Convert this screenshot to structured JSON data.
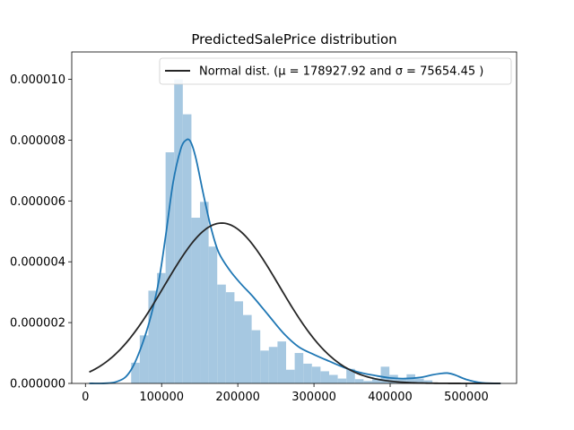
{
  "chart_data": {
    "type": "bar",
    "title": "PredictedSalePrice distribution",
    "xlabel": "",
    "ylabel": "",
    "xlim": [
      -18000,
      566000
    ],
    "ylim": [
      0,
      1.09e-05
    ],
    "x_ticks": [
      0,
      100000,
      200000,
      300000,
      400000,
      500000
    ],
    "y_ticks": [
      0,
      2e-06,
      4e-06,
      6e-06,
      8e-06,
      1e-05
    ],
    "y_tick_labels": [
      "0.000000",
      "0.000002",
      "0.000004",
      "0.000006",
      "0.000008",
      "0.000010"
    ],
    "grid": false,
    "legend_position": "top-right",
    "histogram": {
      "bin_width": 11300,
      "bins_left": [
        60000,
        71300,
        82600,
        93900,
        105200,
        116500,
        127800,
        139100,
        150400,
        161700,
        173000,
        184300,
        195600,
        206900,
        218200,
        229500,
        240800,
        252100,
        263400,
        274700,
        286000,
        297300,
        308600,
        319900,
        331200,
        342500,
        353800,
        365100,
        376400,
        387700,
        399000,
        410300,
        421600,
        432900,
        444200,
        455500,
        466800,
        478100,
        489400
      ],
      "density": [
        6.8e-07,
        1.58e-06,
        3.05e-06,
        3.63e-06,
        7.6e-06,
        1e-05,
        8.85e-06,
        5.45e-06,
        5.97e-06,
        4.5e-06,
        3.25e-06,
        3e-06,
        2.7e-06,
        2.25e-06,
        1.75e-06,
        1.08e-06,
        1.2e-06,
        1.38e-06,
        4.5e-07,
        1e-06,
        6.5e-07,
        5.5e-07,
        4e-07,
        2.8e-07,
        1.6e-07,
        4.8e-07,
        1.4e-07,
        8e-08,
        1.6e-07,
        5.5e-07,
        2.8e-07,
        1.6e-07,
        3e-07,
        1.6e-07,
        1e-07,
        0,
        0,
        0,
        0
      ],
      "color": "#a6c8e1"
    },
    "series": [
      {
        "name": "Normal dist. (μ = 178927.92 and σ = 75654.45 )",
        "type": "normal_pdf",
        "mu": 178927.92,
        "sigma": 75654.45,
        "x_range": [
          5000,
          545000
        ],
        "color": "#262626"
      },
      {
        "type": "kde",
        "color": "#1f77b4",
        "x": [
          5000,
          40000,
          60000,
          80000,
          95000,
          105000,
          115000,
          125000,
          132000,
          138000,
          145000,
          155000,
          165000,
          175000,
          190000,
          205000,
          220000,
          240000,
          260000,
          280000,
          300000,
          320000,
          340000,
          360000,
          380000,
          400000,
          420000,
          440000,
          455000,
          465000,
          475000,
          485000,
          500000,
          520000,
          545000
        ],
        "y": [
          0,
          5e-08,
          4.5e-07,
          1.7e-06,
          3.2e-06,
          4.8e-06,
          6.6e-06,
          7.7e-06,
          8e-06,
          7.95e-06,
          7.4e-06,
          6.2e-06,
          5.1e-06,
          4.3e-06,
          3.7e-06,
          3.25e-06,
          2.85e-06,
          2.25e-06,
          1.65e-06,
          1.2e-06,
          9.5e-07,
          7.3e-07,
          5.2e-07,
          3.6e-07,
          2.6e-07,
          1.8e-07,
          1.6e-07,
          2e-07,
          2.8e-07,
          3.2e-07,
          3.4e-07,
          2.8e-07,
          1.3e-07,
          2e-08,
          0
        ]
      }
    ]
  }
}
